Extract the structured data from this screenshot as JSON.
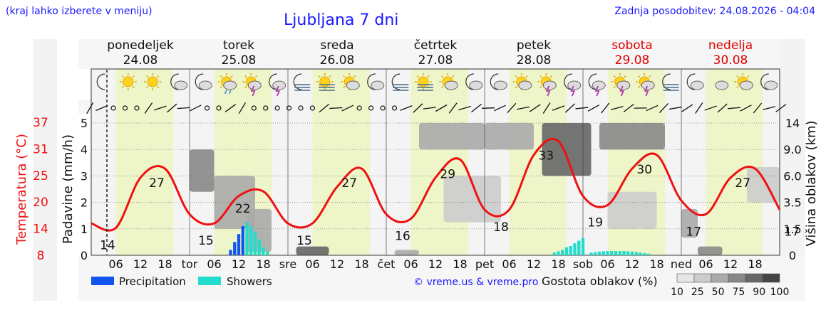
{
  "header": {
    "hint": "(kraj lahko izberete v meniju)",
    "title": "Ljubljana 7 dni",
    "updated": "Zadnja posodobitev: 24.08.2026 - 04:04"
  },
  "colors": {
    "temperature": "#ee1111",
    "precipitation": "#1155ee",
    "showers": "#22ddcc",
    "day_band": "#eef5c8",
    "night_band": "#f4f4f4",
    "weekend": "#dd0000",
    "link": "#1a1aff"
  },
  "days": [
    {
      "name": "ponedeljek",
      "date": "24.08",
      "weekend": false
    },
    {
      "name": "torek",
      "date": "25.08",
      "weekend": false
    },
    {
      "name": "sreda",
      "date": "26.08",
      "weekend": false
    },
    {
      "name": "četrtek",
      "date": "27.08",
      "weekend": false
    },
    {
      "name": "petek",
      "date": "28.08",
      "weekend": false
    },
    {
      "name": "sobota",
      "date": "29.08",
      "weekend": true
    },
    {
      "name": "nedelja",
      "date": "30.08",
      "weekend": true
    }
  ],
  "x_axis": {
    "day_abbrev": [
      "tor",
      "sre",
      "čet",
      "pet",
      "sob",
      "ned"
    ],
    "hour_labels": [
      "06",
      "12",
      "18"
    ]
  },
  "icons": [
    "moon-icon",
    "sun-icon",
    "sun-icon",
    "moon-cloud-icon",
    "moon-cloud-icon",
    "sun-cloud-rain-icon",
    "sun-thunder-icon",
    "moon-thunder-icon",
    "moon-fog-icon",
    "sun-fog-icon",
    "sun-cloud-icon",
    "moon-cloud-icon",
    "moon-fog-icon",
    "sun-fog-icon",
    "sun-cloud-icon",
    "moon-cloud-icon",
    "moon-cloud-icon",
    "sun-cloud-icon",
    "sun-thunder-icon",
    "moon-thunder-icon",
    "moon-thunder-icon",
    "sun-thunder-icon",
    "sun-thunder-icon",
    "moon-fog-icon",
    "moon-cloud-icon",
    "cloud-icon",
    "sun-cloud-icon",
    "moon-cloud-icon"
  ],
  "left_axes": {
    "temperature": {
      "label": "Temperatura (°C)",
      "ticks": [
        "37",
        "31",
        "25",
        "20",
        "14",
        "8"
      ]
    },
    "precipitation": {
      "label": "Padavine (mm/h)",
      "ticks": [
        "5",
        "4",
        "3",
        "2",
        "1",
        "0"
      ]
    }
  },
  "right_axis": {
    "label": "Višina oblakov (km)",
    "ticks": [
      "14",
      "9.0",
      "6.0",
      "3.5",
      "1.5",
      "0"
    ]
  },
  "chart_data": {
    "type": "line",
    "series": [
      {
        "name": "Temperatura (°C)",
        "x_hours": [
          0,
          6,
          12,
          18,
          24,
          30,
          36,
          42,
          48,
          54,
          60,
          66,
          72,
          78,
          84,
          90,
          96,
          102,
          108,
          114,
          120,
          126,
          132,
          138,
          144,
          150,
          156,
          162,
          168
        ],
        "values": [
          15,
          14,
          25,
          27,
          17,
          15,
          21,
          22,
          15,
          15,
          23,
          27,
          17,
          16,
          25,
          29,
          18,
          18,
          30,
          33,
          21,
          19,
          27,
          30,
          20,
          17,
          25,
          27,
          18
        ]
      }
    ],
    "temperature_labels": [
      {
        "hour": 4,
        "value": "14"
      },
      {
        "hour": 16,
        "value": "27"
      },
      {
        "hour": 28,
        "value": "15"
      },
      {
        "hour": 37,
        "value": "22"
      },
      {
        "hour": 52,
        "value": "15"
      },
      {
        "hour": 63,
        "value": "27"
      },
      {
        "hour": 76,
        "value": "16"
      },
      {
        "hour": 87,
        "value": "29"
      },
      {
        "hour": 100,
        "value": "18"
      },
      {
        "hour": 111,
        "value": "33"
      },
      {
        "hour": 123,
        "value": "19"
      },
      {
        "hour": 135,
        "value": "30"
      },
      {
        "hour": 147,
        "value": "17"
      },
      {
        "hour": 159,
        "value": "27"
      },
      {
        "hour": 171,
        "value": "17"
      }
    ],
    "precipitation": [
      {
        "hour": 34,
        "value": 0.2
      },
      {
        "hour": 35,
        "value": 0.5
      },
      {
        "hour": 36,
        "value": 0.8
      },
      {
        "hour": 37,
        "value": 1.1
      }
    ],
    "showers": [
      {
        "hour": 38,
        "value": 1.25
      },
      {
        "hour": 39,
        "value": 1.1
      },
      {
        "hour": 40,
        "value": 0.9
      },
      {
        "hour": 41,
        "value": 0.6
      },
      {
        "hour": 42,
        "value": 0.3
      },
      {
        "hour": 43,
        "value": 0.15
      },
      {
        "hour": 113,
        "value": 0.1
      },
      {
        "hour": 114,
        "value": 0.15
      },
      {
        "hour": 115,
        "value": 0.2
      },
      {
        "hour": 116,
        "value": 0.3
      },
      {
        "hour": 117,
        "value": 0.35
      },
      {
        "hour": 118,
        "value": 0.45
      },
      {
        "hour": 119,
        "value": 0.55
      },
      {
        "hour": 120,
        "value": 0.65
      },
      {
        "hour": 122,
        "value": 0.1
      },
      {
        "hour": 123,
        "value": 0.12
      },
      {
        "hour": 124,
        "value": 0.14
      },
      {
        "hour": 125,
        "value": 0.15
      },
      {
        "hour": 126,
        "value": 0.16
      },
      {
        "hour": 127,
        "value": 0.16
      },
      {
        "hour": 128,
        "value": 0.16
      },
      {
        "hour": 129,
        "value": 0.16
      },
      {
        "hour": 130,
        "value": 0.16
      },
      {
        "hour": 131,
        "value": 0.15
      },
      {
        "hour": 132,
        "value": 0.14
      },
      {
        "hour": 133,
        "value": 0.12
      },
      {
        "hour": 134,
        "value": 0.1
      },
      {
        "hour": 135,
        "value": 0.08
      },
      {
        "hour": 136,
        "value": 0.06
      }
    ],
    "cloud_layers": [
      {
        "start_hour": 24,
        "end_hour": 30,
        "base_km": 4.5,
        "top_km": 9.0,
        "density": 75
      },
      {
        "start_hour": 30,
        "end_hour": 40,
        "base_km": 1.5,
        "top_km": 6.0,
        "density": 60
      },
      {
        "start_hour": 38,
        "end_hour": 44,
        "base_km": 0.2,
        "top_km": 3.0,
        "density": 50
      },
      {
        "start_hour": 50,
        "end_hour": 58,
        "base_km": 0.0,
        "top_km": 0.5,
        "density": 90
      },
      {
        "start_hour": 74,
        "end_hour": 80,
        "base_km": 0.0,
        "top_km": 0.3,
        "density": 60
      },
      {
        "start_hour": 80,
        "end_hour": 96,
        "base_km": 9.0,
        "top_km": 14.0,
        "density": 50
      },
      {
        "start_hour": 86,
        "end_hour": 100,
        "base_km": 2.0,
        "top_km": 6.0,
        "density": 35
      },
      {
        "start_hour": 96,
        "end_hour": 108,
        "base_km": 9.0,
        "top_km": 14.0,
        "density": 60
      },
      {
        "start_hour": 110,
        "end_hour": 122,
        "base_km": 6.0,
        "top_km": 14.0,
        "density": 90
      },
      {
        "start_hour": 124,
        "end_hour": 140,
        "base_km": 9.0,
        "top_km": 14.0,
        "density": 75
      },
      {
        "start_hour": 126,
        "end_hour": 138,
        "base_km": 1.5,
        "top_km": 4.5,
        "density": 35
      },
      {
        "start_hour": 144,
        "end_hour": 148,
        "base_km": 1.0,
        "top_km": 3.0,
        "density": 50
      },
      {
        "start_hour": 148,
        "end_hour": 154,
        "base_km": 0.0,
        "top_km": 0.5,
        "density": 75
      },
      {
        "start_hour": 160,
        "end_hour": 168,
        "base_km": 3.5,
        "top_km": 7.0,
        "density": 35
      }
    ],
    "temperature_range": [
      8,
      37
    ],
    "precipitation_range": [
      0,
      5
    ],
    "grid": true
  },
  "legend": {
    "precipitation": "Precipitation",
    "showers": "Showers",
    "credit": "© vreme.us & vreme.pro",
    "cloud_density_title": "Gostota oblakov (%)",
    "cloud_density_ticks": [
      "10",
      "25",
      "50",
      "75",
      "90",
      "100"
    ],
    "cloud_density_colors": [
      "#e6e6e6",
      "#cccccc",
      "#aaaaaa",
      "#888888",
      "#666666",
      "#444444"
    ]
  }
}
